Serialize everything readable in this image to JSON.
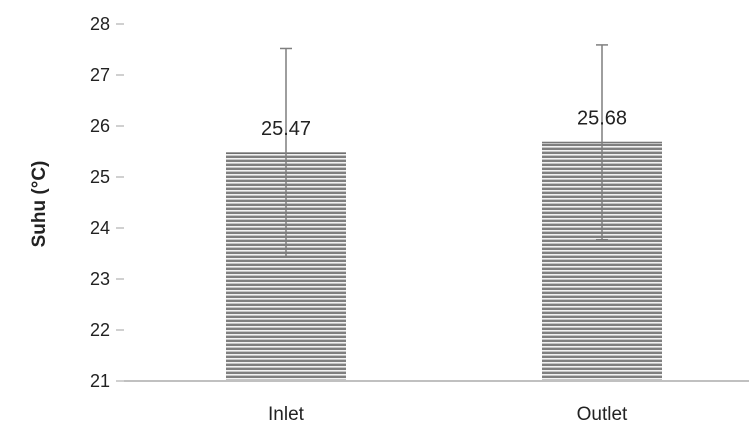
{
  "chart_data": {
    "type": "bar",
    "title": "",
    "xlabel": "",
    "ylabel": "Suhu (°C)",
    "categories": [
      "Inlet",
      "Outlet"
    ],
    "values": [
      25.47,
      25.68
    ],
    "value_labels": [
      "25.47",
      "25.68"
    ],
    "error_bars": [
      {
        "low": 23.43,
        "high": 27.52
      },
      {
        "low": 23.77,
        "high": 27.59
      }
    ],
    "ylim": [
      21,
      28
    ],
    "yticks": [
      21,
      22,
      23,
      24,
      25,
      26,
      27,
      28
    ],
    "ytick_labels": [
      "21",
      "22",
      "23",
      "24",
      "25",
      "26",
      "27",
      "28"
    ],
    "grid": false,
    "legend": "none",
    "colors": {
      "bar_fill": "#7f7f7f",
      "bar_stripe": "#f2f2f2",
      "error_bar": "#7f7f7f",
      "axis": "#c0c0c0"
    }
  }
}
